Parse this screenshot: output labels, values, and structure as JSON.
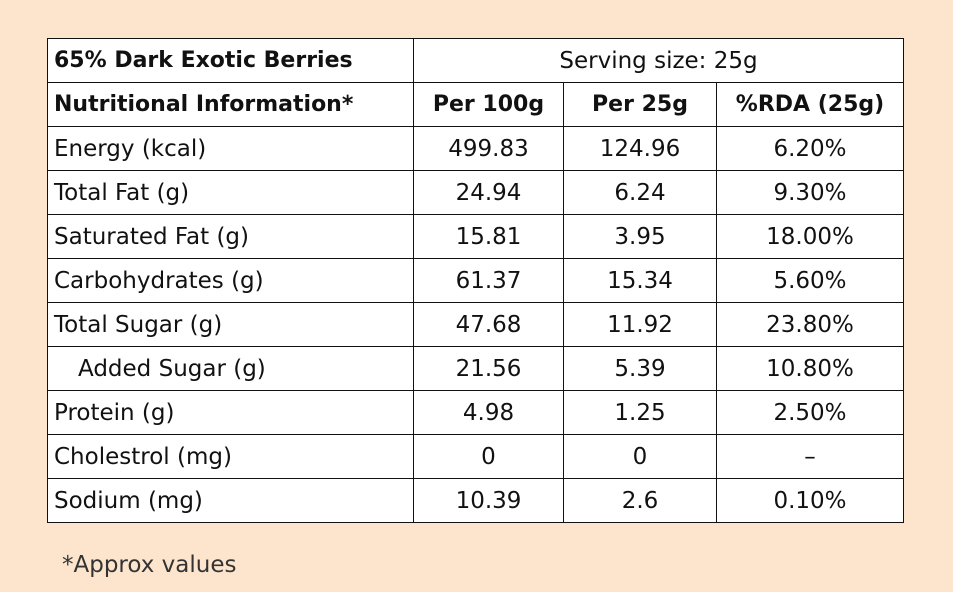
{
  "table": {
    "title": "65% Dark Exotic Berries",
    "serving": "Serving size: 25g",
    "header": [
      "Nutritional Information*",
      "Per 100g",
      "Per 25g",
      "%RDA (25g)"
    ],
    "rows": [
      [
        "Energy (kcal)",
        "499.83",
        "124.96",
        "6.20%"
      ],
      [
        "Total Fat (g)",
        "24.94",
        "6.24",
        "9.30%"
      ],
      [
        "Saturated Fat (g)",
        "15.81",
        "3.95",
        "18.00%"
      ],
      [
        "Carbohydrates (g)",
        "61.37",
        "15.34",
        "5.60%"
      ],
      [
        "Total Sugar (g)",
        "47.68",
        "11.92",
        "23.80%"
      ],
      [
        "Added Sugar (g)",
        "21.56",
        "5.39",
        "10.80%"
      ],
      [
        "Protein (g)",
        "4.98",
        "1.25",
        "2.50%"
      ],
      [
        "Cholestrol (mg)",
        "0",
        "0",
        "–"
      ],
      [
        "Sodium (mg)",
        "10.39",
        "2.6",
        "0.10%"
      ]
    ]
  },
  "footnote": "*Approx values"
}
